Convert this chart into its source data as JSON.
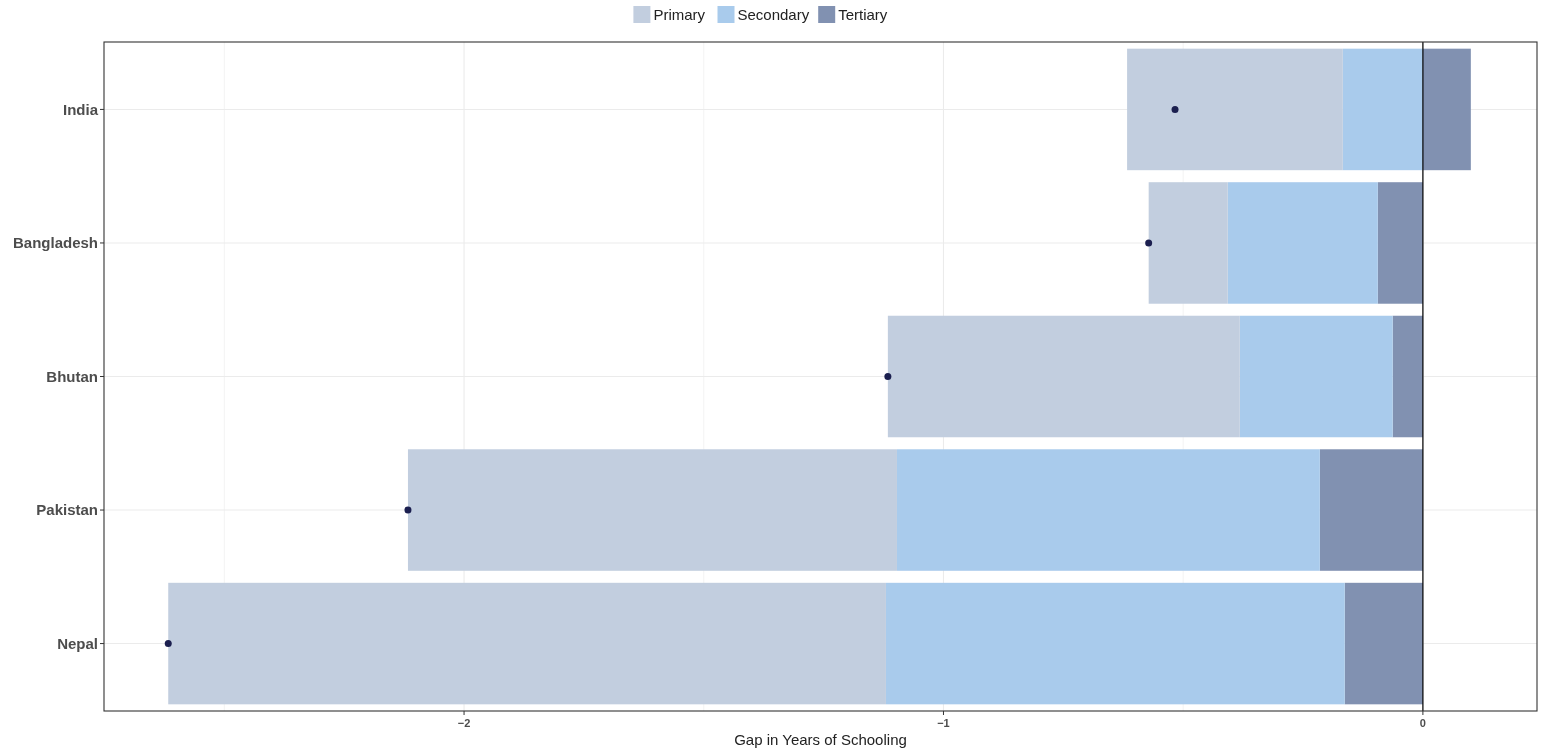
{
  "chart_data": {
    "type": "bar",
    "orientation": "horizontal",
    "stacked": true,
    "xlabel": "Gap in Years of Schooling",
    "categories": [
      "India",
      "Bangladesh",
      "Bhutan",
      "Pakistan",
      "Nepal"
    ],
    "series": [
      {
        "name": "Tertiary",
        "color": "#8191b1",
        "values": [
          0.1,
          -0.094,
          -0.063,
          -0.215,
          -0.163
        ]
      },
      {
        "name": "Secondary",
        "color": "#a9cbec",
        "values": [
          -0.167,
          -0.313,
          -0.319,
          -0.882,
          -0.957
        ]
      },
      {
        "name": "Primary",
        "color": "#c2cedf",
        "values": [
          -0.45,
          -0.165,
          -0.734,
          -1.02,
          -1.497
        ]
      },
      {
        "type": "scatter",
        "color": "#1b1f4f",
        "values": [
          -0.517,
          -0.572,
          -1.116,
          -2.117,
          -2.617
        ]
      }
    ],
    "xlim": [
      -2.751,
      0.238
    ],
    "xticks": [
      {
        "value": -2.5,
        "label": null
      },
      -2,
      {
        "value": -1.5,
        "label": null
      },
      -1,
      {
        "value": -0.5,
        "label": null
      },
      0
    ],
    "ref_lines": [
      {
        "axis": "x",
        "value": 0,
        "color": "#000000"
      }
    ],
    "grid": true,
    "legend": "top"
  }
}
